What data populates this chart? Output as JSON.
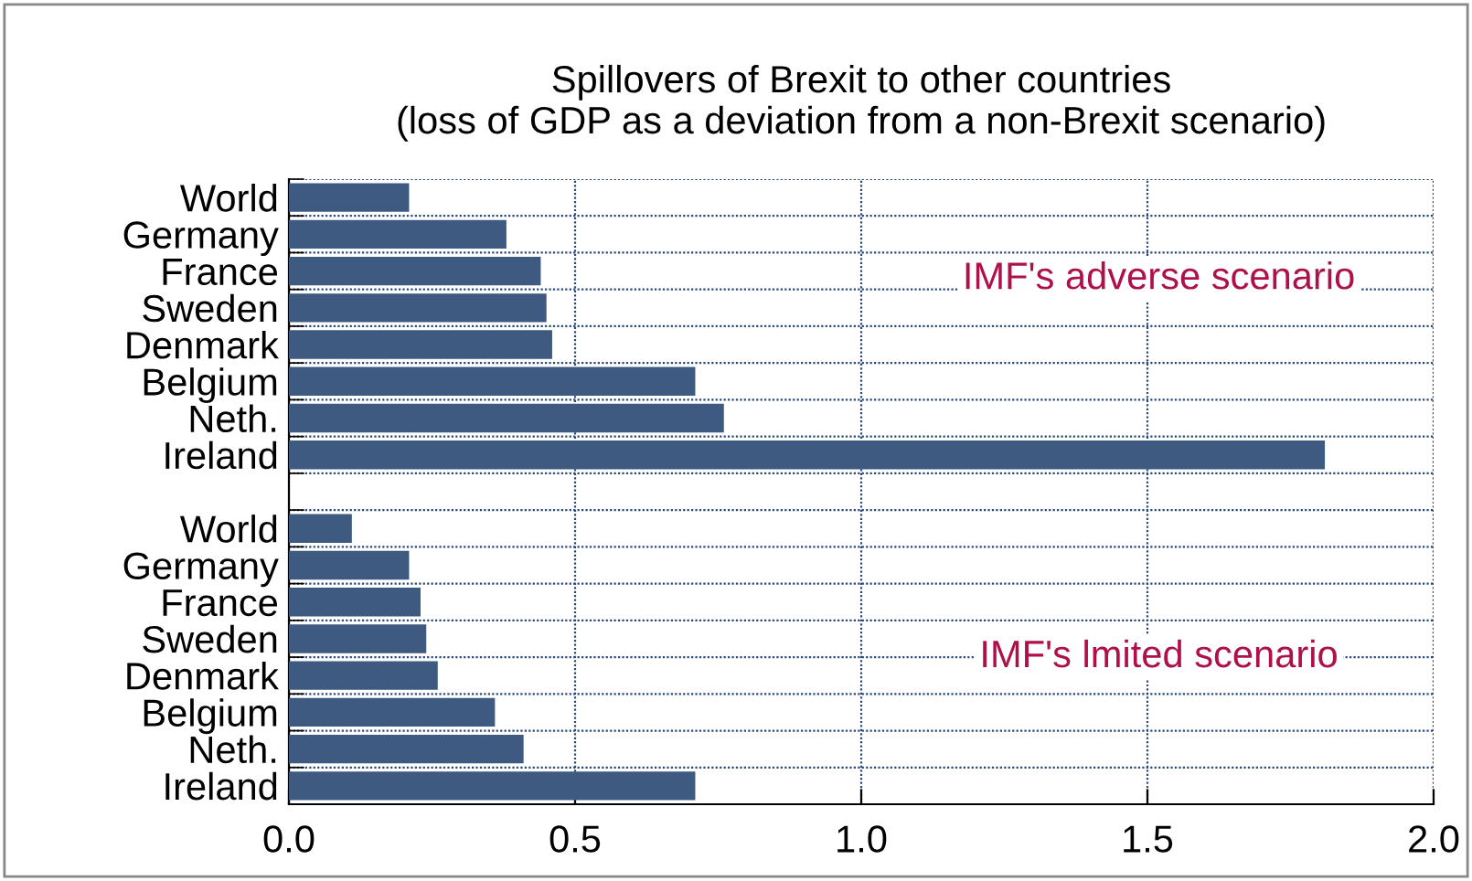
{
  "chart_data": {
    "type": "bar",
    "orientation": "horizontal",
    "title": "Spillovers of Brexit to other countries\n(loss of GDP as a deviation from a non-Brexit scenario)",
    "categories": [
      "World",
      "Germany",
      "France",
      "Sweden",
      "Denmark",
      "Belgium",
      "Neth.",
      "Ireland",
      null,
      "World",
      "Germany",
      "France",
      "Sweden",
      "Denmark",
      "Belgium",
      "Neth.",
      "Ireland"
    ],
    "values": [
      0.21,
      0.38,
      0.44,
      0.45,
      0.46,
      0.71,
      0.76,
      1.81,
      null,
      0.11,
      0.21,
      0.23,
      0.24,
      0.26,
      0.36,
      0.41,
      0.71
    ],
    "color": "#3f5a80",
    "xlim": [
      0,
      2.0
    ],
    "xticks": [
      {
        "value": 0,
        "label": "0.0"
      },
      0.5,
      {
        "value": 1,
        "label": "1.0"
      },
      1.5,
      {
        "value": 2,
        "label": "2.0"
      }
    ],
    "grid": true,
    "annotations": [
      "IMF's adverse scenario",
      "IMF's lmited scenario"
    ]
  }
}
